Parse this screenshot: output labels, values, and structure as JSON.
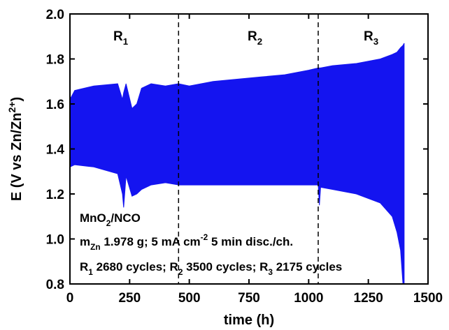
{
  "chart_data": {
    "type": "band",
    "color": "#1414f0",
    "x_label": "time (h)",
    "y_label": [
      {
        "text": "E (V vs Zn/Zn"
      },
      {
        "text": "2+",
        "shift": "sup"
      },
      {
        "text": ")"
      }
    ],
    "x": [
      0,
      20,
      100,
      200,
      220,
      225,
      235,
      260,
      280,
      300,
      340,
      400,
      455,
      500,
      600,
      700,
      800,
      900,
      1000,
      1040,
      1045,
      1050,
      1100,
      1200,
      1300,
      1350,
      1370,
      1385,
      1395,
      1400
    ],
    "upper": [
      1.62,
      1.66,
      1.68,
      1.69,
      1.62,
      1.65,
      1.69,
      1.58,
      1.6,
      1.67,
      1.69,
      1.68,
      1.69,
      1.68,
      1.7,
      1.71,
      1.72,
      1.73,
      1.75,
      1.76,
      1.76,
      1.76,
      1.77,
      1.78,
      1.8,
      1.82,
      1.83,
      1.85,
      1.86,
      1.87
    ],
    "lower": [
      1.32,
      1.33,
      1.32,
      1.29,
      1.2,
      1.14,
      1.28,
      1.19,
      1.2,
      1.22,
      1.24,
      1.25,
      1.24,
      1.24,
      1.24,
      1.24,
      1.24,
      1.24,
      1.24,
      1.24,
      1.15,
      1.23,
      1.22,
      1.2,
      1.16,
      1.1,
      1.03,
      0.95,
      0.8,
      0.8
    ],
    "xlim": [
      0,
      1500
    ],
    "xticks": [
      0,
      250,
      500,
      750,
      1000,
      1250,
      1500
    ],
    "ylim": [
      0.8,
      2.0
    ],
    "yticks": [
      0.8,
      {
        "value": 1,
        "label": "1.0"
      },
      1.2,
      1.4,
      1.6,
      1.8,
      {
        "value": 2,
        "label": "2.0"
      }
    ],
    "dividers": [
      455,
      1040
    ],
    "regions": [
      [
        {
          "text": "R"
        },
        {
          "text": "1",
          "shift": "sub"
        }
      ],
      [
        {
          "text": "R"
        },
        {
          "text": "2",
          "shift": "sub"
        }
      ],
      [
        {
          "text": "R"
        },
        {
          "text": "3",
          "shift": "sub"
        }
      ]
    ],
    "annotations": [
      [
        {
          "text": "MnO"
        },
        {
          "text": "2",
          "shift": "sub"
        },
        {
          "text": "/NCO"
        }
      ],
      [
        {
          "text": "m"
        },
        {
          "text": "Zn",
          "shift": "sub"
        },
        {
          "text": " 1.978 g; 5 mA cm"
        },
        {
          "text": "-2",
          "shift": "sup"
        },
        {
          "text": " 5 min disc./ch."
        }
      ],
      [
        {
          "text": "R"
        },
        {
          "text": "1",
          "shift": "sub"
        },
        {
          "text": " 2680 cycles; R"
        },
        {
          "text": "2",
          "shift": "sub"
        },
        {
          "text": " 3500 cycles; R"
        },
        {
          "text": "3",
          "shift": "sub"
        },
        {
          "text": " 2175 cycles"
        }
      ]
    ]
  }
}
